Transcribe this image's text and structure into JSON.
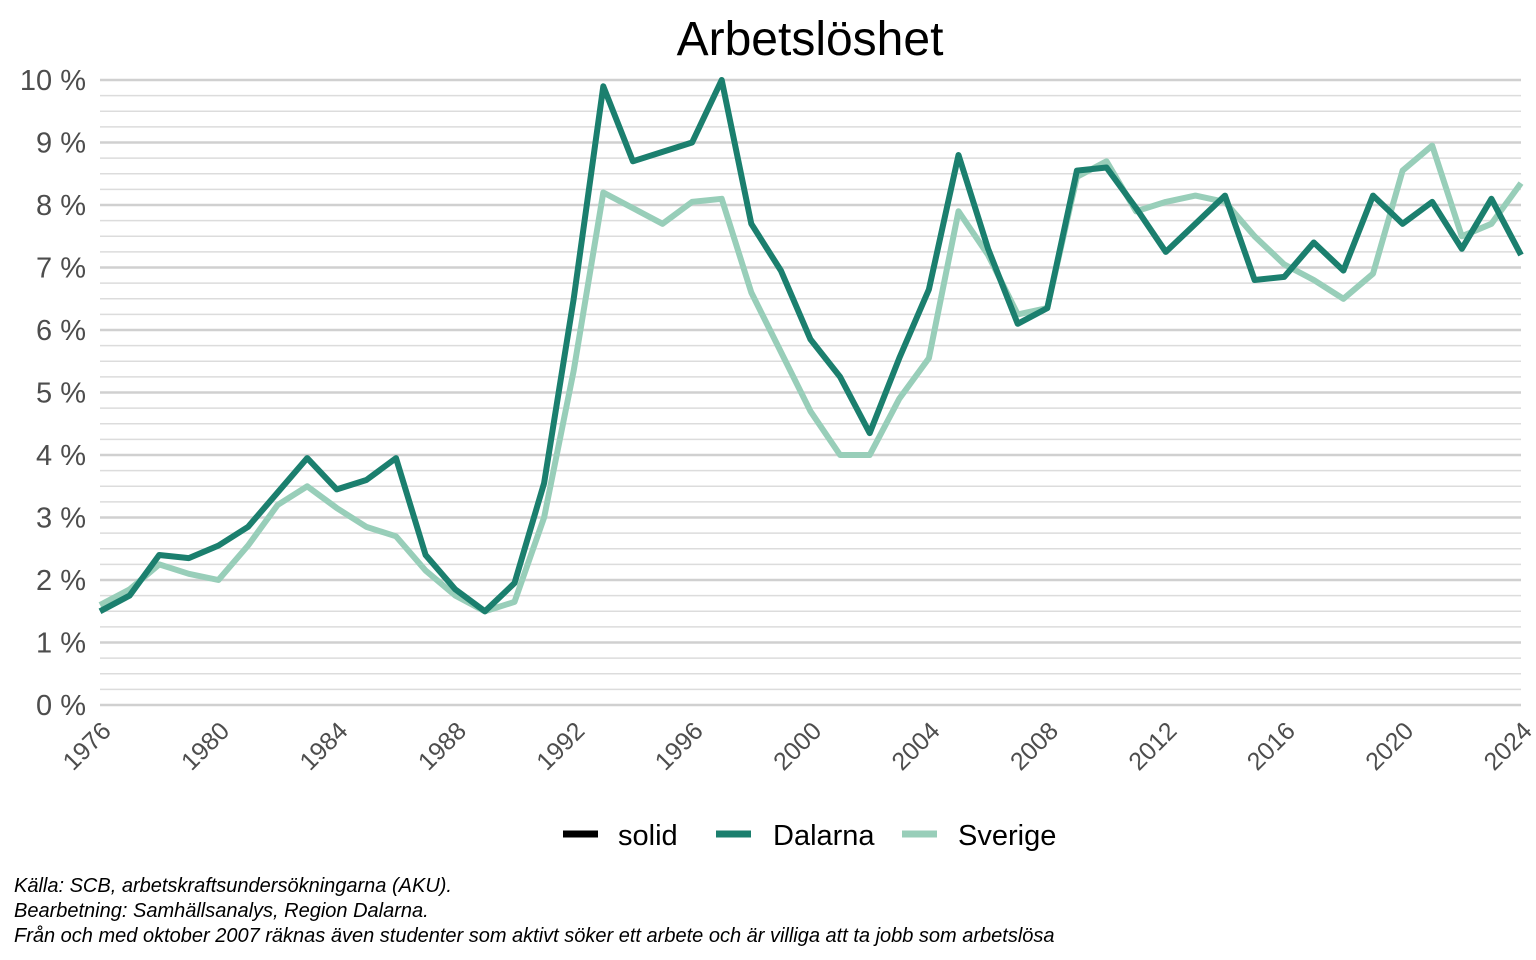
{
  "chart_data": {
    "type": "line",
    "title": "Arbetslöshet",
    "xlabel": "",
    "ylabel": "",
    "x_range": [
      1976,
      2024
    ],
    "x_ticks": [
      "1976",
      "1980",
      "1984",
      "1988",
      "1992",
      "1996",
      "2000",
      "2004",
      "2008",
      "2012",
      "2016",
      "2020",
      "2024"
    ],
    "ylim": [
      0,
      10
    ],
    "y_ticks": [
      "0 %",
      "1 %",
      "2 %",
      "3 %",
      "4 %",
      "5 %",
      "6 %",
      "7 %",
      "8 %",
      "9 %",
      "10 %"
    ],
    "grid": true,
    "legend_position": "bottom",
    "legend": [
      "solid",
      "Dalarna",
      "Sverige"
    ],
    "x": [
      1976,
      1977,
      1978,
      1979,
      1980,
      1981,
      1982,
      1983,
      1984,
      1985,
      1986,
      1987,
      1988,
      1989,
      1990,
      1991,
      1992,
      1993,
      1994,
      1995,
      1996,
      1997,
      1998,
      1999,
      2000,
      2001,
      2002,
      2003,
      2004,
      2005,
      2006,
      2007,
      2008,
      2009,
      2010,
      2011,
      2012,
      2013,
      2014,
      2015,
      2016,
      2017,
      2018,
      2019,
      2020,
      2021,
      2022,
      2023,
      2024
    ],
    "series": [
      {
        "name": "Dalarna",
        "color": "#1b7f6e",
        "values": [
          1.5,
          1.75,
          2.4,
          2.35,
          2.55,
          2.85,
          3.4,
          3.95,
          3.45,
          3.6,
          3.95,
          2.4,
          1.85,
          1.5,
          1.95,
          3.55,
          6.5,
          9.9,
          8.7,
          8.85,
          9.0,
          10.0,
          7.7,
          6.95,
          5.85,
          5.25,
          4.35,
          5.55,
          6.65,
          8.8,
          7.3,
          6.1,
          6.35,
          8.55,
          8.6,
          7.95,
          7.25,
          7.7,
          8.15,
          6.8,
          6.85,
          7.4,
          6.95,
          8.15,
          7.7,
          8.05,
          7.3,
          8.1,
          7.2
        ]
      },
      {
        "name": "Sverige",
        "color": "#98ceb9",
        "values": [
          1.6,
          1.85,
          2.25,
          2.1,
          2.0,
          2.55,
          3.2,
          3.5,
          3.15,
          2.85,
          2.7,
          2.15,
          1.75,
          1.5,
          1.65,
          3.0,
          5.35,
          8.2,
          7.95,
          7.7,
          8.05,
          8.1,
          6.6,
          5.65,
          4.7,
          4.0,
          4.0,
          4.9,
          5.55,
          7.9,
          7.2,
          6.25,
          6.35,
          8.45,
          8.7,
          7.9,
          8.05,
          8.15,
          8.05,
          7.5,
          7.05,
          6.8,
          6.5,
          6.9,
          8.55,
          8.95,
          7.5,
          7.7,
          8.35
        ]
      }
    ]
  },
  "caption_lines": [
    "Källa: SCB, arbetskraftsundersökningarna (AKU).",
    "Bearbetning: Samhällsanalys, Region Dalarna.",
    "Från och med oktober 2007 räknas även studenter som aktivt söker ett arbete och är villiga att ta jobb som arbetslösa"
  ],
  "legend_colors": [
    "#000000",
    "#1b7f6e",
    "#98ceb9"
  ]
}
